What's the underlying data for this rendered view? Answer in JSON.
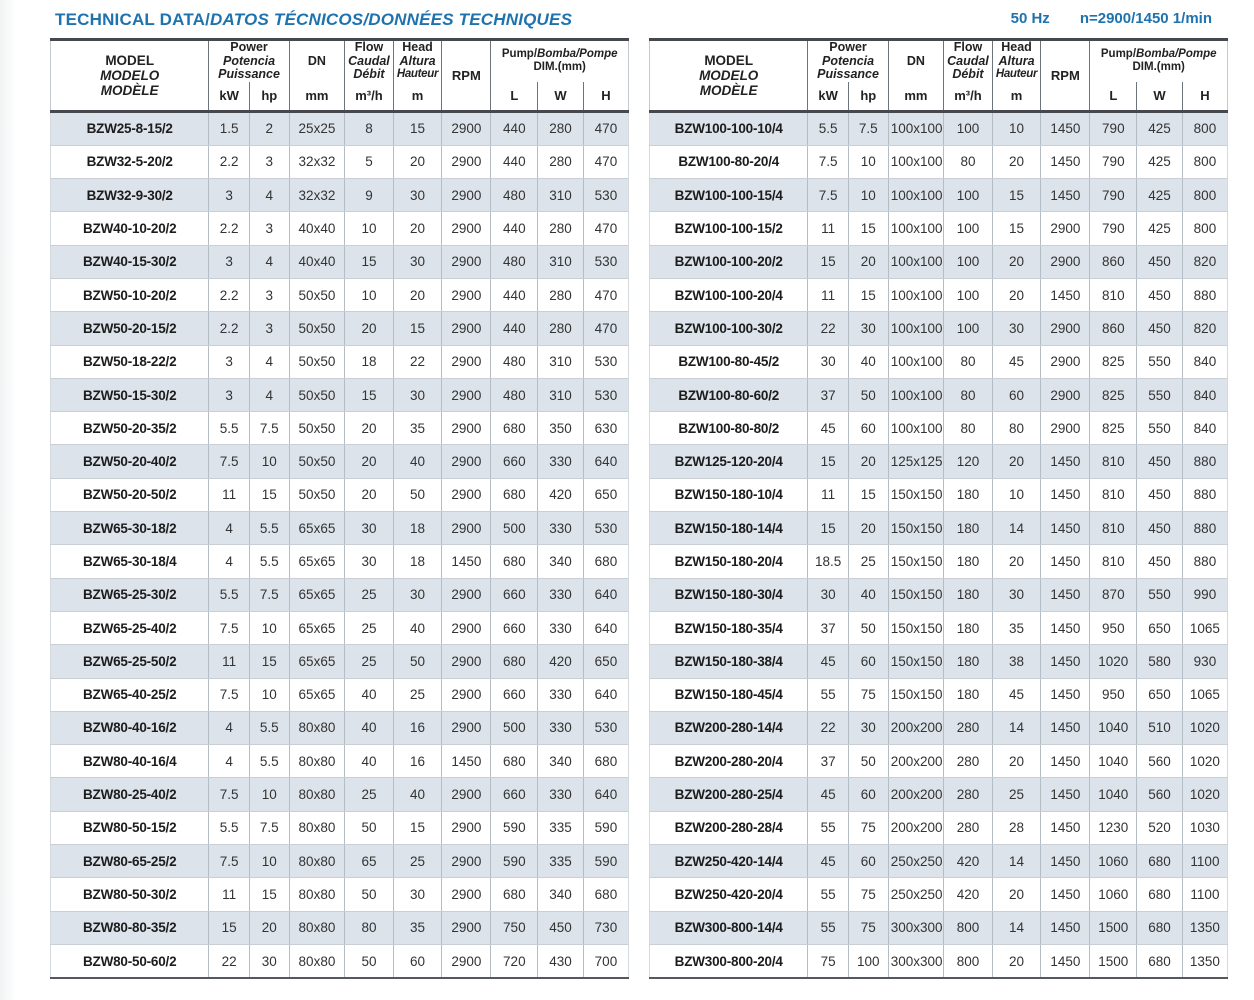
{
  "header": {
    "title_bold": "TECHNICAL DATA/",
    "title_italic": "DATOS TÉCNICOS/DONNÉES TECHNIQUES",
    "frequency": "50 Hz",
    "speed_note": "n=2900/1450 1/min"
  },
  "colors": {
    "accent": "#1e73ae",
    "row_alt": "#dce3ea",
    "line_dark": "#45494e",
    "line_light": "#b4bcc4"
  },
  "columns": {
    "model_lines": [
      "MODEL",
      "MODELO",
      "MODÈLE"
    ],
    "power_lines": [
      "Power",
      "Potencia",
      "Puissance"
    ],
    "power_units": [
      "kW",
      "hp"
    ],
    "dn_label": "DN",
    "dn_unit": "mm",
    "flow_lines": [
      "Flow",
      "Caudal",
      "Débit"
    ],
    "flow_unit": "m³/h",
    "head_lines": [
      "Head",
      "Altura",
      "Hauteur"
    ],
    "head_unit": "m",
    "rpm_label": "RPM",
    "dim_label_bold": "Pump/",
    "dim_label_italic": "Bomba/Pompe",
    "dim_sub": "DIM.(mm)",
    "dim_units": [
      "L",
      "W",
      "H"
    ]
  },
  "tables": [
    {
      "name": "left",
      "rows": [
        [
          "BZW25-8-15/2",
          "1.5",
          "2",
          "25x25",
          "8",
          "15",
          "2900",
          "440",
          "280",
          "470"
        ],
        [
          "BZW32-5-20/2",
          "2.2",
          "3",
          "32x32",
          "5",
          "20",
          "2900",
          "440",
          "280",
          "470"
        ],
        [
          "BZW32-9-30/2",
          "3",
          "4",
          "32x32",
          "9",
          "30",
          "2900",
          "480",
          "310",
          "530"
        ],
        [
          "BZW40-10-20/2",
          "2.2",
          "3",
          "40x40",
          "10",
          "20",
          "2900",
          "440",
          "280",
          "470"
        ],
        [
          "BZW40-15-30/2",
          "3",
          "4",
          "40x40",
          "15",
          "30",
          "2900",
          "480",
          "310",
          "530"
        ],
        [
          "BZW50-10-20/2",
          "2.2",
          "3",
          "50x50",
          "10",
          "20",
          "2900",
          "440",
          "280",
          "470"
        ],
        [
          "BZW50-20-15/2",
          "2.2",
          "3",
          "50x50",
          "20",
          "15",
          "2900",
          "440",
          "280",
          "470"
        ],
        [
          "BZW50-18-22/2",
          "3",
          "4",
          "50x50",
          "18",
          "22",
          "2900",
          "480",
          "310",
          "530"
        ],
        [
          "BZW50-15-30/2",
          "3",
          "4",
          "50x50",
          "15",
          "30",
          "2900",
          "480",
          "310",
          "530"
        ],
        [
          "BZW50-20-35/2",
          "5.5",
          "7.5",
          "50x50",
          "20",
          "35",
          "2900",
          "680",
          "350",
          "630"
        ],
        [
          "BZW50-20-40/2",
          "7.5",
          "10",
          "50x50",
          "20",
          "40",
          "2900",
          "660",
          "330",
          "640"
        ],
        [
          "BZW50-20-50/2",
          "11",
          "15",
          "50x50",
          "20",
          "50",
          "2900",
          "680",
          "420",
          "650"
        ],
        [
          "BZW65-30-18/2",
          "4",
          "5.5",
          "65x65",
          "30",
          "18",
          "2900",
          "500",
          "330",
          "530"
        ],
        [
          "BZW65-30-18/4",
          "4",
          "5.5",
          "65x65",
          "30",
          "18",
          "1450",
          "680",
          "340",
          "680"
        ],
        [
          "BZW65-25-30/2",
          "5.5",
          "7.5",
          "65x65",
          "25",
          "30",
          "2900",
          "660",
          "330",
          "640"
        ],
        [
          "BZW65-25-40/2",
          "7.5",
          "10",
          "65x65",
          "25",
          "40",
          "2900",
          "660",
          "330",
          "640"
        ],
        [
          "BZW65-25-50/2",
          "11",
          "15",
          "65x65",
          "25",
          "50",
          "2900",
          "680",
          "420",
          "650"
        ],
        [
          "BZW65-40-25/2",
          "7.5",
          "10",
          "65x65",
          "40",
          "25",
          "2900",
          "660",
          "330",
          "640"
        ],
        [
          "BZW80-40-16/2",
          "4",
          "5.5",
          "80x80",
          "40",
          "16",
          "2900",
          "500",
          "330",
          "530"
        ],
        [
          "BZW80-40-16/4",
          "4",
          "5.5",
          "80x80",
          "40",
          "16",
          "1450",
          "680",
          "340",
          "680"
        ],
        [
          "BZW80-25-40/2",
          "7.5",
          "10",
          "80x80",
          "25",
          "40",
          "2900",
          "660",
          "330",
          "640"
        ],
        [
          "BZW80-50-15/2",
          "5.5",
          "7.5",
          "80x80",
          "50",
          "15",
          "2900",
          "590",
          "335",
          "590"
        ],
        [
          "BZW80-65-25/2",
          "7.5",
          "10",
          "80x80",
          "65",
          "25",
          "2900",
          "590",
          "335",
          "590"
        ],
        [
          "BZW80-50-30/2",
          "11",
          "15",
          "80x80",
          "50",
          "30",
          "2900",
          "680",
          "340",
          "680"
        ],
        [
          "BZW80-80-35/2",
          "15",
          "20",
          "80x80",
          "80",
          "35",
          "2900",
          "750",
          "450",
          "730"
        ],
        [
          "BZW80-50-60/2",
          "22",
          "30",
          "80x80",
          "50",
          "60",
          "2900",
          "720",
          "430",
          "700"
        ]
      ]
    },
    {
      "name": "right",
      "rows": [
        [
          "BZW100-100-10/4",
          "5.5",
          "7.5",
          "100x100",
          "100",
          "10",
          "1450",
          "790",
          "425",
          "800"
        ],
        [
          "BZW100-80-20/4",
          "7.5",
          "10",
          "100x100",
          "80",
          "20",
          "1450",
          "790",
          "425",
          "800"
        ],
        [
          "BZW100-100-15/4",
          "7.5",
          "10",
          "100x100",
          "100",
          "15",
          "1450",
          "790",
          "425",
          "800"
        ],
        [
          "BZW100-100-15/2",
          "11",
          "15",
          "100x100",
          "100",
          "15",
          "2900",
          "790",
          "425",
          "800"
        ],
        [
          "BZW100-100-20/2",
          "15",
          "20",
          "100x100",
          "100",
          "20",
          "2900",
          "860",
          "450",
          "820"
        ],
        [
          "BZW100-100-20/4",
          "11",
          "15",
          "100x100",
          "100",
          "20",
          "1450",
          "810",
          "450",
          "880"
        ],
        [
          "BZW100-100-30/2",
          "22",
          "30",
          "100x100",
          "100",
          "30",
          "2900",
          "860",
          "450",
          "820"
        ],
        [
          "BZW100-80-45/2",
          "30",
          "40",
          "100x100",
          "80",
          "45",
          "2900",
          "825",
          "550",
          "840"
        ],
        [
          "BZW100-80-60/2",
          "37",
          "50",
          "100x100",
          "80",
          "60",
          "2900",
          "825",
          "550",
          "840"
        ],
        [
          "BZW100-80-80/2",
          "45",
          "60",
          "100x100",
          "80",
          "80",
          "2900",
          "825",
          "550",
          "840"
        ],
        [
          "BZW125-120-20/4",
          "15",
          "20",
          "125x125",
          "120",
          "20",
          "1450",
          "810",
          "450",
          "880"
        ],
        [
          "BZW150-180-10/4",
          "11",
          "15",
          "150x150",
          "180",
          "10",
          "1450",
          "810",
          "450",
          "880"
        ],
        [
          "BZW150-180-14/4",
          "15",
          "20",
          "150x150",
          "180",
          "14",
          "1450",
          "810",
          "450",
          "880"
        ],
        [
          "BZW150-180-20/4",
          "18.5",
          "25",
          "150x150",
          "180",
          "20",
          "1450",
          "810",
          "450",
          "880"
        ],
        [
          "BZW150-180-30/4",
          "30",
          "40",
          "150x150",
          "180",
          "30",
          "1450",
          "870",
          "550",
          "990"
        ],
        [
          "BZW150-180-35/4",
          "37",
          "50",
          "150x150",
          "180",
          "35",
          "1450",
          "950",
          "650",
          "1065"
        ],
        [
          "BZW150-180-38/4",
          "45",
          "60",
          "150x150",
          "180",
          "38",
          "1450",
          "1020",
          "580",
          "930"
        ],
        [
          "BZW150-180-45/4",
          "55",
          "75",
          "150x150",
          "180",
          "45",
          "1450",
          "950",
          "650",
          "1065"
        ],
        [
          "BZW200-280-14/4",
          "22",
          "30",
          "200x200",
          "280",
          "14",
          "1450",
          "1040",
          "510",
          "1020"
        ],
        [
          "BZW200-280-20/4",
          "37",
          "50",
          "200x200",
          "280",
          "20",
          "1450",
          "1040",
          "560",
          "1020"
        ],
        [
          "BZW200-280-25/4",
          "45",
          "60",
          "200x200",
          "280",
          "25",
          "1450",
          "1040",
          "560",
          "1020"
        ],
        [
          "BZW200-280-28/4",
          "55",
          "75",
          "200x200",
          "280",
          "28",
          "1450",
          "1230",
          "520",
          "1030"
        ],
        [
          "BZW250-420-14/4",
          "45",
          "60",
          "250x250",
          "420",
          "14",
          "1450",
          "1060",
          "680",
          "1100"
        ],
        [
          "BZW250-420-20/4",
          "55",
          "75",
          "250x250",
          "420",
          "20",
          "1450",
          "1060",
          "680",
          "1100"
        ],
        [
          "BZW300-800-14/4",
          "55",
          "75",
          "300x300",
          "800",
          "14",
          "1450",
          "1500",
          "680",
          "1350"
        ],
        [
          "BZW300-800-20/4",
          "75",
          "100",
          "300x300",
          "800",
          "20",
          "1450",
          "1500",
          "680",
          "1350"
        ]
      ]
    }
  ]
}
